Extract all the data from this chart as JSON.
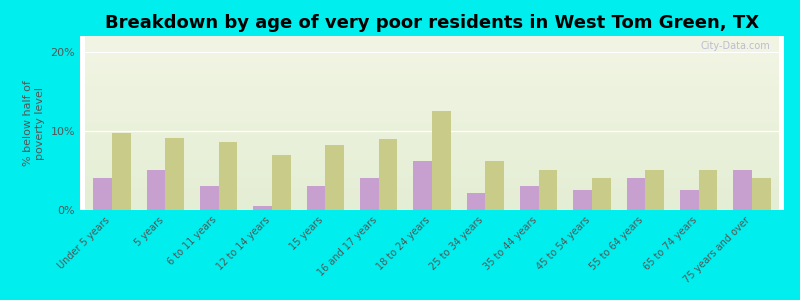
{
  "title": "Breakdown by age of very poor residents in West Tom Green, TX",
  "ylabel": "% below half of\npoverty level",
  "categories": [
    "Under 5 years",
    "5 years",
    "6 to 11 years",
    "12 to 14 years",
    "15 years",
    "16 and 17 years",
    "18 to 24 years",
    "25 to 34 years",
    "35 to 44 years",
    "45 to 54 years",
    "55 to 64 years",
    "65 to 74 years",
    "75 years and over"
  ],
  "west_tom_green": [
    4.0,
    5.0,
    3.0,
    0.5,
    3.0,
    4.0,
    6.2,
    2.2,
    3.0,
    2.5,
    4.0,
    2.5,
    5.0
  ],
  "texas": [
    9.7,
    9.1,
    8.6,
    7.0,
    8.2,
    9.0,
    12.5,
    6.2,
    5.0,
    4.0,
    5.0,
    5.0,
    4.0
  ],
  "west_color": "#c8a0d0",
  "texas_color": "#c8cc88",
  "background_outer": "#00eeee",
  "background_inner_top": "#f2f5e4",
  "background_inner_bottom": "#e4eed4",
  "ylim": [
    0,
    22
  ],
  "yticks": [
    0,
    10,
    20
  ],
  "ytick_labels": [
    "0%",
    "10%",
    "20%"
  ],
  "bar_width": 0.35,
  "title_fontsize": 13,
  "label_fontsize": 7.0,
  "watermark": "City-Data.com"
}
